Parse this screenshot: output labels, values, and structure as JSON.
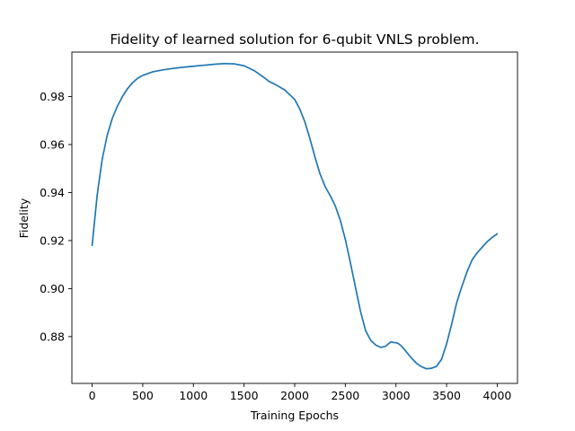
{
  "chart_data": {
    "type": "line",
    "title": "Fidelity of learned solution for 6-qubit VNLS problem.",
    "xlabel": "Training Epochs",
    "ylabel": "Fidelity",
    "xlim": [
      -200,
      4200
    ],
    "ylim": [
      0.8605,
      0.9985
    ],
    "xticks": [
      0,
      500,
      1000,
      1500,
      2000,
      2500,
      3000,
      3500,
      4000
    ],
    "xtick_labels": [
      "0",
      "500",
      "1000",
      "1500",
      "2000",
      "2500",
      "3000",
      "3500",
      "4000"
    ],
    "yticks": [
      0.88,
      0.9,
      0.92,
      0.94,
      0.96,
      0.98
    ],
    "ytick_labels": [
      "0.88",
      "0.90",
      "0.92",
      "0.94",
      "0.96",
      "0.98"
    ],
    "grid": false,
    "series": [
      {
        "color": "#1f77b4",
        "x": [
          0,
          50,
          100,
          150,
          200,
          250,
          300,
          350,
          400,
          450,
          500,
          600,
          700,
          800,
          900,
          1000,
          1100,
          1200,
          1300,
          1400,
          1500,
          1600,
          1700,
          1750,
          1800,
          1900,
          2000,
          2050,
          2100,
          2150,
          2200,
          2250,
          2300,
          2350,
          2400,
          2450,
          2500,
          2550,
          2600,
          2650,
          2700,
          2750,
          2800,
          2850,
          2900,
          2920,
          2950,
          2980,
          3000,
          3020,
          3050,
          3080,
          3100,
          3150,
          3200,
          3250,
          3300,
          3350,
          3400,
          3450,
          3500,
          3550,
          3600,
          3650,
          3700,
          3750,
          3800,
          3850,
          3900,
          3950,
          4000
        ],
        "y": [
          0.918,
          0.939,
          0.954,
          0.964,
          0.971,
          0.976,
          0.98,
          0.9833,
          0.9858,
          0.9876,
          0.9888,
          0.9903,
          0.9911,
          0.9917,
          0.9922,
          0.9926,
          0.993,
          0.9934,
          0.9937,
          0.9936,
          0.9928,
          0.9908,
          0.9878,
          0.9862,
          0.9852,
          0.9828,
          0.9788,
          0.9748,
          0.9695,
          0.9625,
          0.9548,
          0.9478,
          0.9425,
          0.9388,
          0.9345,
          0.9285,
          0.9205,
          0.9108,
          0.9005,
          0.8905,
          0.8825,
          0.8785,
          0.8765,
          0.8755,
          0.876,
          0.8768,
          0.8778,
          0.8775,
          0.8775,
          0.8772,
          0.8762,
          0.8748,
          0.8738,
          0.8712,
          0.869,
          0.8675,
          0.8666,
          0.8668,
          0.8676,
          0.8705,
          0.877,
          0.8852,
          0.8942,
          0.9008,
          0.9068,
          0.9118,
          0.9148,
          0.9172,
          0.9195,
          0.9213,
          0.9228
        ]
      }
    ]
  }
}
